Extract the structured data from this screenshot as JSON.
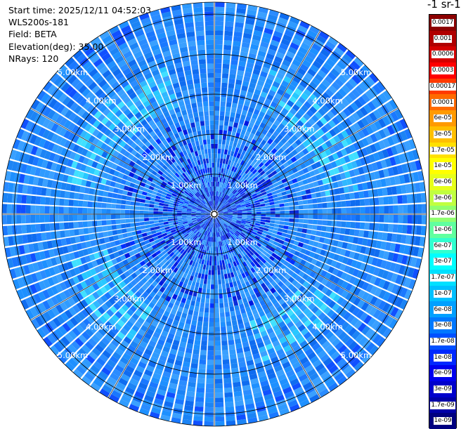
{
  "info": {
    "start_time": "Start time: 2025/12/11 04:52:03",
    "instrument": "WLS200s-181",
    "field": "Field: BETA",
    "elevation": "Elevation(deg): 35.00",
    "nrays": "NRays: 120"
  },
  "colorbar": {
    "title": "-1 sr-1",
    "labels": [
      "0.0017",
      "0.001",
      "0.0006",
      "0.0003",
      "0.00017",
      "0.0001",
      "6e-05",
      "3e-05",
      "1.7e-05",
      "1e-05",
      "6e-06",
      "3e-06",
      "1.7e-06",
      "1e-06",
      "6e-07",
      "3e-07",
      "1.7e-07",
      "1e-07",
      "6e-08",
      "3e-08",
      "1.7e-08",
      "1e-08",
      "6e-09",
      "3e-09",
      "1.7e-09",
      "1e-09"
    ],
    "colors": [
      "#8b0000",
      "#b00000",
      "#d40000",
      "#ff0000",
      "#ff3a00",
      "#ff6a00",
      "#ff9a00",
      "#ffbf00",
      "#ffe000",
      "#ffff00",
      "#e6ff1a",
      "#c0ff40",
      "#90ff70",
      "#60ff9f",
      "#30ffcf",
      "#00ffff",
      "#00e0ff",
      "#00c0ff",
      "#00a0ff",
      "#0078ff",
      "#0050ff",
      "#0028ff",
      "#0000ee",
      "#0000cc",
      "#0000a8",
      "#000080"
    ]
  },
  "chart_data": {
    "type": "ppi",
    "field": "BETA",
    "nrays": 120,
    "elevation_deg": 35.0,
    "range_rings_km": [
      1,
      2,
      3,
      4,
      5
    ],
    "ring_labels": [
      "1.00km",
      "2.00km",
      "3.00km",
      "4.00km",
      "5.00km"
    ],
    "colormap": "jet",
    "dominant_color": "#1e8cff"
  }
}
